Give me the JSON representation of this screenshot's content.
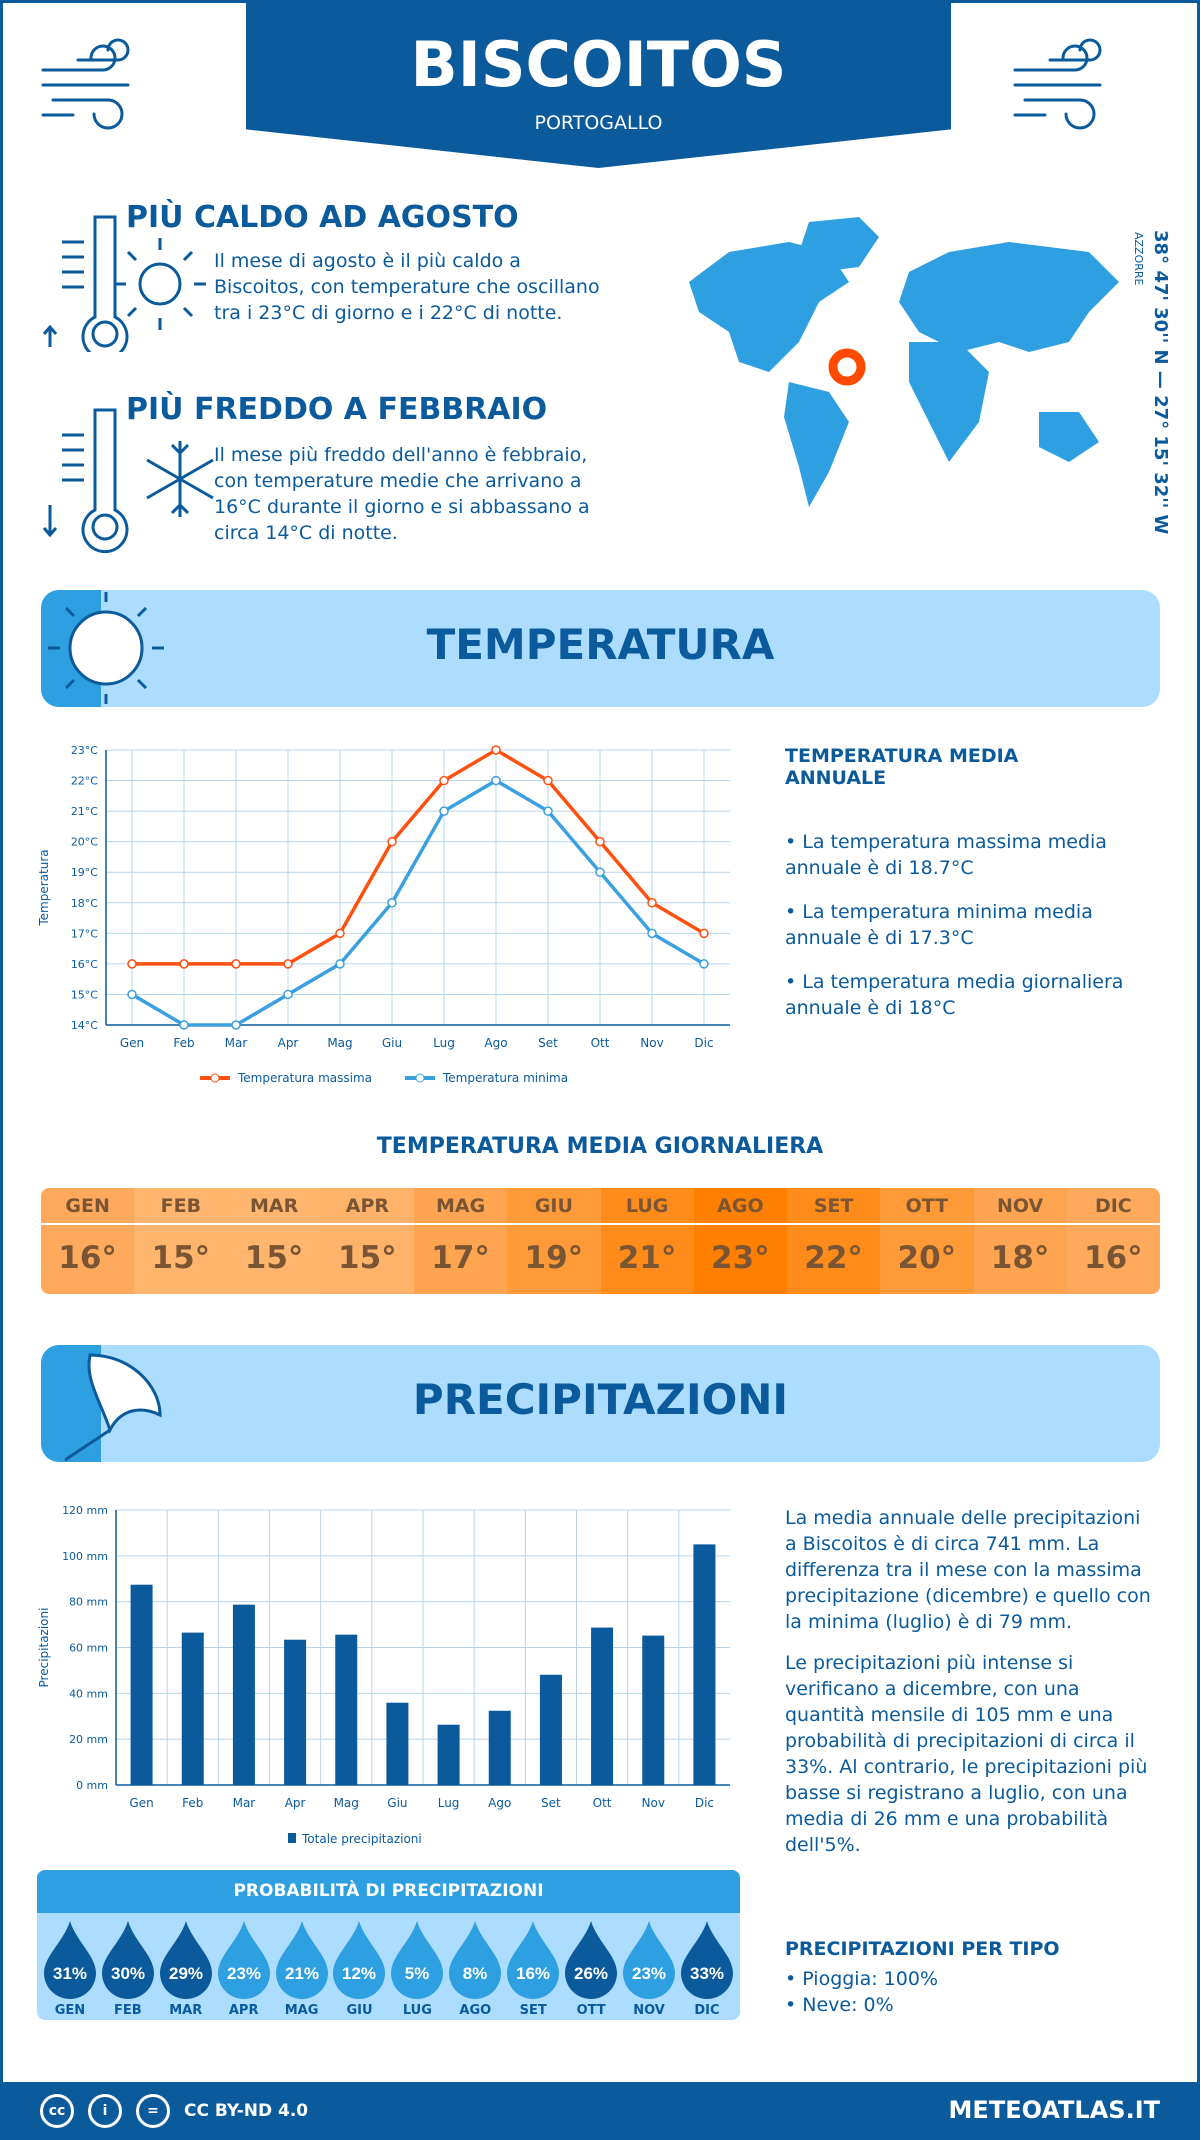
{
  "header": {
    "title": "BISCOITOS",
    "subtitle": "PORTOGALLO"
  },
  "warm": {
    "title": "PIÙ CALDO AD AGOSTO",
    "text": "Il mese di agosto è il più caldo a Biscoitos, con temperature che oscillano tra i 23°C di giorno e i 22°C di notte."
  },
  "cold": {
    "title": "PIÙ FREDDO A FEBBRAIO",
    "text": "Il mese più freddo dell'anno è febbraio, con temperature medie che arrivano a 16°C durante il giorno e si abbassano a circa 14°C di notte."
  },
  "map": {
    "coords": "38° 47' 30'' N — 27° 15' 32'' W",
    "region": "AZZORRE"
  },
  "temp_section": {
    "title": "TEMPERATURA",
    "side_title": "TEMPERATURA MEDIA ANNUALE",
    "bullets": [
      "• La temperatura massima media annuale è di 18.7°C",
      "• La temperatura minima media annuale è di 17.3°C",
      "• La temperatura media giornaliera annuale è di 18°C"
    ]
  },
  "daily": {
    "title": "TEMPERATURA MEDIA GIORNALIERA",
    "months": [
      "GEN",
      "FEB",
      "MAR",
      "APR",
      "MAG",
      "GIU",
      "LUG",
      "AGO",
      "SET",
      "OTT",
      "NOV",
      "DIC"
    ],
    "values": [
      "16°",
      "15°",
      "15°",
      "15°",
      "17°",
      "19°",
      "21°",
      "23°",
      "22°",
      "20°",
      "18°",
      "16°"
    ],
    "colors": [
      "#ffa95c",
      "#ffb56d",
      "#ffb56d",
      "#ffb26a",
      "#ffa552",
      "#ff9a38",
      "#ff8c1a",
      "#ff8000",
      "#ff8c1a",
      "#ff9a38",
      "#ffa552",
      "#ffa95c"
    ]
  },
  "precip_section": {
    "title": "PRECIPITAZIONI",
    "text1": "La media annuale delle precipitazioni a Biscoitos è di circa 741 mm. La differenza tra il mese con la massima precipitazione (dicembre) e quello con la minima (luglio) è di 79 mm.",
    "text2": "Le precipitazioni più intense si verificano a dicembre, con una quantità mensile di 105 mm e una probabilità di precipitazioni di circa il 33%. Al contrario, le precipitazioni più basse si registrano a luglio, con una media di 26 mm e una probabilità dell'5%.",
    "type_title": "PRECIPITAZIONI PER TIPO",
    "types": [
      "• Pioggia: 100%",
      "• Neve: 0%"
    ]
  },
  "probability": {
    "title": "PROBABILITÀ DI PRECIPITAZIONI",
    "months": [
      "GEN",
      "FEB",
      "MAR",
      "APR",
      "MAG",
      "GIU",
      "LUG",
      "AGO",
      "SET",
      "OTT",
      "NOV",
      "DIC"
    ],
    "values": [
      "31%",
      "30%",
      "29%",
      "23%",
      "21%",
      "12%",
      "5%",
      "8%",
      "16%",
      "26%",
      "23%",
      "33%"
    ],
    "dark": [
      true,
      true,
      true,
      false,
      false,
      false,
      false,
      false,
      false,
      true,
      false,
      true
    ]
  },
  "footer": {
    "license": "CC BY-ND 4.0",
    "site": "METEOATLAS.IT"
  },
  "chart_data": [
    {
      "type": "line",
      "categories": [
        "Gen",
        "Feb",
        "Mar",
        "Apr",
        "Mag",
        "Giu",
        "Lug",
        "Ago",
        "Set",
        "Ott",
        "Nov",
        "Dic"
      ],
      "ylabel": "Temperatura",
      "ylim": [
        14,
        23
      ],
      "yticks": [
        "14°C",
        "15°C",
        "16°C",
        "17°C",
        "18°C",
        "19°C",
        "20°C",
        "21°C",
        "22°C",
        "23°C"
      ],
      "grid": true,
      "legend": "bottom",
      "series": [
        {
          "name": "Temperatura massima",
          "color": "#ff5010",
          "values": [
            16,
            16,
            16,
            16,
            17,
            20,
            22,
            23,
            22,
            20,
            18,
            17
          ]
        },
        {
          "name": "Temperatura minima",
          "color": "#3aa0e0",
          "values": [
            15,
            14,
            14,
            15,
            16,
            18,
            21,
            22,
            21,
            19,
            17,
            16
          ]
        }
      ]
    },
    {
      "type": "bar",
      "categories": [
        "Gen",
        "Feb",
        "Mar",
        "Apr",
        "Mag",
        "Giu",
        "Lug",
        "Ago",
        "Set",
        "Ott",
        "Nov",
        "Dic"
      ],
      "ylabel": "Precipitazioni",
      "ylim": [
        0,
        120
      ],
      "yticks": [
        "0 mm",
        "20 mm",
        "40 mm",
        "60 mm",
        "80 mm",
        "100 mm",
        "120 mm"
      ],
      "grid": true,
      "legend": "bottom",
      "series": [
        {
          "name": "Totale precipitazioni",
          "color": "#0a5a9c",
          "values": [
            87.4,
            66.5,
            78.7,
            63.4,
            65.6,
            35.9,
            26.3,
            32.4,
            48.1,
            68.7,
            65.2,
            105
          ]
        }
      ]
    }
  ]
}
